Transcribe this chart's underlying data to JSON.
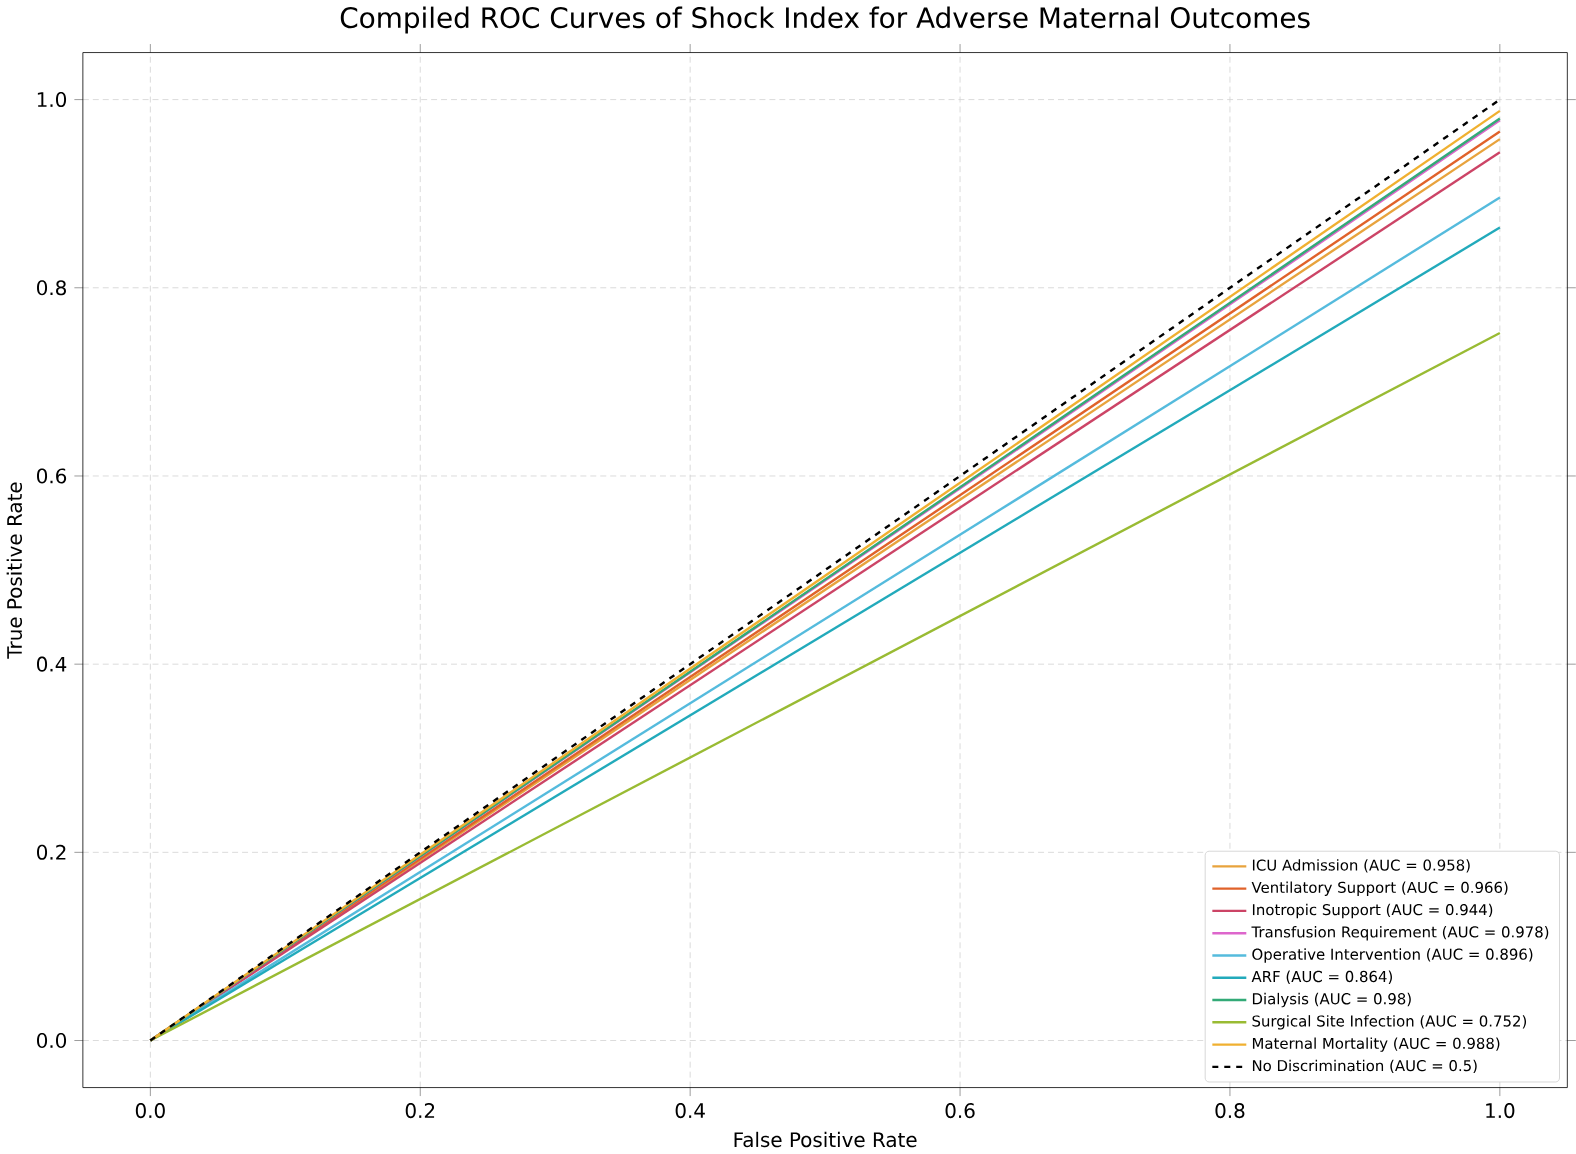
{
  "chart_data": {
    "type": "line",
    "title": "Compiled ROC Curves of Shock Index for Adverse Maternal Outcomes",
    "xlabel": "False Positive Rate",
    "ylabel": "True Positive Rate",
    "xlim": [
      -0.05,
      1.05
    ],
    "ylim": [
      -0.05,
      1.05
    ],
    "xticks": [
      {
        "value": 0,
        "label": "0.0"
      },
      {
        "value": 0.2,
        "label": "0.2"
      },
      {
        "value": 0.4,
        "label": "0.4"
      },
      {
        "value": 0.6,
        "label": "0.6"
      },
      {
        "value": 0.8,
        "label": "0.8"
      },
      {
        "value": 1,
        "label": "1.0"
      }
    ],
    "yticks": [
      {
        "value": 0,
        "label": "0.0"
      },
      {
        "value": 0.2,
        "label": "0.2"
      },
      {
        "value": 0.4,
        "label": "0.4"
      },
      {
        "value": 0.6,
        "label": "0.6"
      },
      {
        "value": 0.8,
        "label": "0.8"
      },
      {
        "value": 1,
        "label": "1.0"
      }
    ],
    "grid": true,
    "legend": "bottom right",
    "marker": "none",
    "x": [
      0,
      1
    ],
    "series": [
      {
        "name": "ICU Admission (AUC = 0.958)",
        "color": "#e8a33d",
        "values": [
          0,
          0.958
        ]
      },
      {
        "name": "Ventilatory Support (AUC = 0.966)",
        "color": "#e0622a",
        "values": [
          0,
          0.966
        ]
      },
      {
        "name": "Inotropic Support (AUC = 0.944)",
        "color": "#cc4466",
        "values": [
          0,
          0.944
        ]
      },
      {
        "name": "Transfusion Requirement (AUC = 0.978)",
        "color": "#dd66cc",
        "values": [
          0,
          0.978
        ]
      },
      {
        "name": "Operative Intervention (AUC = 0.896)",
        "color": "#55bbdd",
        "values": [
          0,
          0.896
        ]
      },
      {
        "name": "ARF (AUC = 0.864)",
        "color": "#22aabb",
        "values": [
          0,
          0.864
        ]
      },
      {
        "name": "Dialysis (AUC = 0.98)",
        "color": "#33aa77",
        "values": [
          0,
          0.98
        ]
      },
      {
        "name": "Surgical Site Infection (AUC = 0.752)",
        "color": "#99bb33",
        "values": [
          0,
          0.752
        ]
      },
      {
        "name": "Maternal Mortality (AUC = 0.988)",
        "color": "#f0b030",
        "values": [
          0,
          0.988
        ]
      },
      {
        "name": "No Discrimination (AUC = 0.5)",
        "color": "#000000",
        "line_style": "dashed",
        "values": [
          0,
          1
        ]
      }
    ]
  }
}
